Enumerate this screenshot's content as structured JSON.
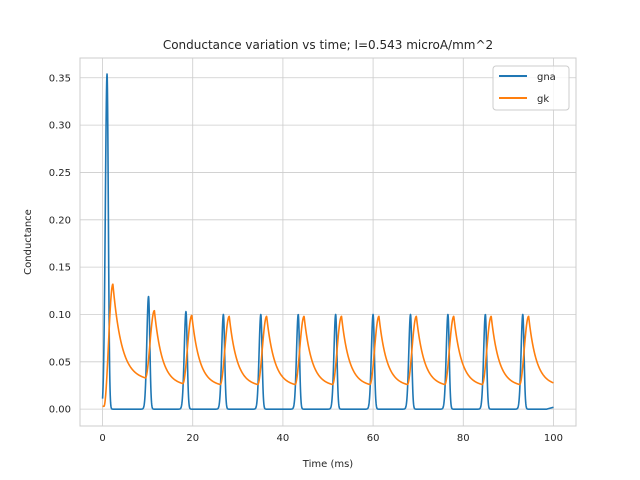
{
  "chart_data": {
    "type": "line",
    "title": "Conductance variation vs time; I=0.543 microA/mm^2",
    "xlabel": "Time (ms)",
    "ylabel": "Conductance",
    "xlim": [
      -5,
      105
    ],
    "ylim": [
      -0.0178,
      0.3709
    ],
    "xticks": [
      0,
      20,
      40,
      60,
      80,
      100
    ],
    "yticks": [
      0.0,
      0.05,
      0.1,
      0.15,
      0.2,
      0.25,
      0.3,
      0.35
    ],
    "ytick_labels": [
      "0.00",
      "0.05",
      "0.10",
      "0.15",
      "0.20",
      "0.25",
      "0.30",
      "0.35"
    ],
    "grid": true,
    "legend_position": "upper right",
    "x_range": [
      0,
      100
    ],
    "first_spike_time": 1.0,
    "spike_times": [
      1.0,
      10.2,
      18.5,
      26.8,
      35.1,
      43.4,
      51.7,
      60.0,
      68.3,
      76.6,
      84.9,
      93.2
    ],
    "series": [
      {
        "name": "gna",
        "color": "#1f77b4",
        "spike_peaks": [
          0.354,
          0.119,
          0.103,
          0.1,
          0.1,
          0.1,
          0.1,
          0.1,
          0.1,
          0.1,
          0.1,
          0.1
        ],
        "baseline": 0.0,
        "end_value": 0.002
      },
      {
        "name": "gk",
        "color": "#ff7f0e",
        "spike_peaks": [
          0.132,
          0.104,
          0.099,
          0.098,
          0.098,
          0.098,
          0.098,
          0.098,
          0.098,
          0.098,
          0.098,
          0.098
        ],
        "trough_values": [
          0.033,
          0.027,
          0.026,
          0.026,
          0.026,
          0.026,
          0.026,
          0.026,
          0.026,
          0.026,
          0.026,
          0.026
        ],
        "start_value": 0.003,
        "end_value": 0.026
      }
    ]
  }
}
